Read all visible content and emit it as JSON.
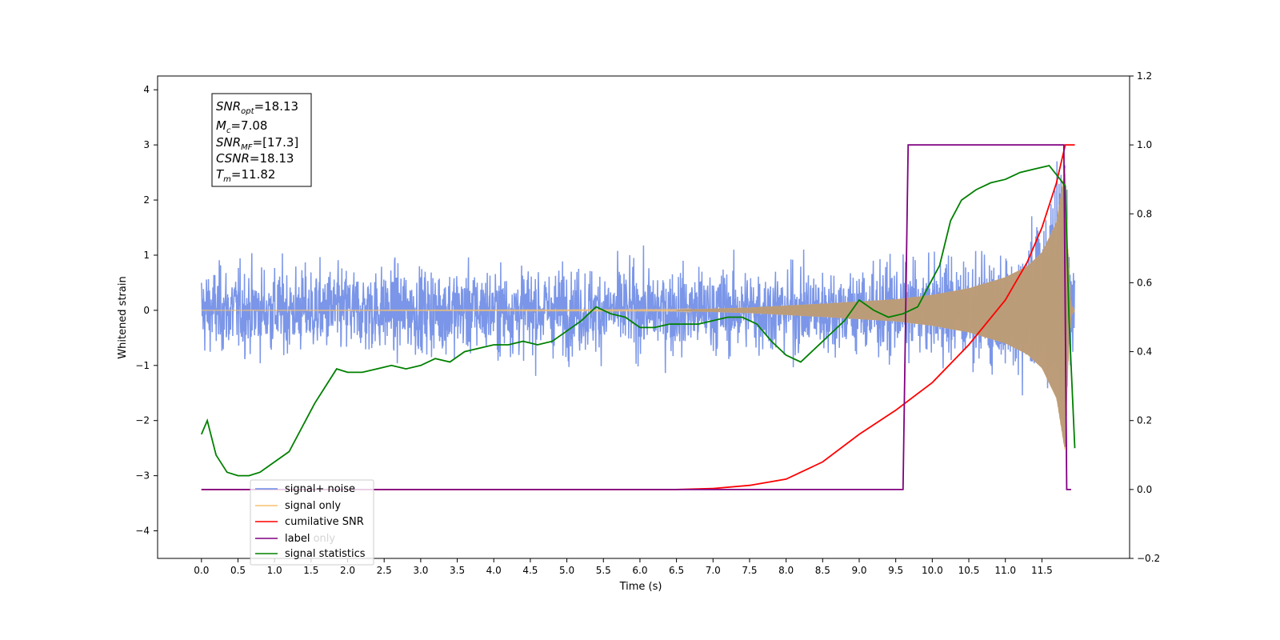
{
  "chart_data": {
    "type": "line",
    "xlabel": "Time (s)",
    "ylabel": "Whitened strain",
    "xlim": [
      -0.6,
      12.7
    ],
    "ylim": [
      -4.5,
      4.25
    ],
    "y2lim": [
      -0.2,
      1.2
    ],
    "grid": false,
    "legend_position": "lower-left",
    "x_ticks": [
      "0.0",
      "0.5",
      "1.0",
      "1.5",
      "2.0",
      "2.5",
      "3.0",
      "3.5",
      "4.0",
      "4.5",
      "5.0",
      "5.5",
      "6.0",
      "6.5",
      "7.0",
      "7.5",
      "8.0",
      "8.5",
      "9.0",
      "9.5",
      "10.0",
      "10.5",
      "11.0",
      "11.5"
    ],
    "y_ticks": [
      "4",
      "3",
      "2",
      "1",
      "0",
      "−1",
      "−2",
      "−3",
      "−4"
    ],
    "y2_ticks": [
      "1.2",
      "1.0",
      "0.8",
      "0.6",
      "0.4",
      "0.2",
      "0.0",
      "−0.2"
    ],
    "annotation": {
      "lines": [
        {
          "sym": "SNR",
          "sub": "opt",
          "val": "=18.13"
        },
        {
          "sym": "M",
          "sub": "c",
          "val": "=7.08"
        },
        {
          "sym": "SNR",
          "sub": "MF",
          "val": "=[17.3]"
        },
        {
          "sym": "CSNR",
          "sub": "",
          "val": "=18.13"
        },
        {
          "sym": "T",
          "sub": "m",
          "val": "=11.82"
        }
      ]
    },
    "series": [
      {
        "name": "signal+ noise",
        "color": "#6d8be6",
        "noise_sigma": 0.75,
        "x_range": [
          0.0,
          11.95
        ]
      },
      {
        "name": "signal only",
        "color": "#f5c070",
        "envelope": [
          [
            0.0,
            0.0
          ],
          [
            6.5,
            0.01
          ],
          [
            7.5,
            0.05
          ],
          [
            8.5,
            0.12
          ],
          [
            9.5,
            0.2
          ],
          [
            10.0,
            0.28
          ],
          [
            10.5,
            0.4
          ],
          [
            11.0,
            0.6
          ],
          [
            11.3,
            0.8
          ],
          [
            11.5,
            1.05
          ],
          [
            11.7,
            1.6
          ],
          [
            11.82,
            2.6
          ],
          [
            11.86,
            1.0
          ],
          [
            11.9,
            0.1
          ],
          [
            11.95,
            0.0
          ]
        ]
      },
      {
        "name": "cumilative SNR",
        "color": "#ff0000",
        "axis": "right",
        "x": [
          0.0,
          6.5,
          7.0,
          7.5,
          8.0,
          8.5,
          9.0,
          9.5,
          10.0,
          10.5,
          11.0,
          11.3,
          11.5,
          11.7,
          11.82,
          11.95
        ],
        "y": [
          0.0,
          0.0,
          0.003,
          0.012,
          0.03,
          0.08,
          0.16,
          0.23,
          0.31,
          0.42,
          0.55,
          0.66,
          0.76,
          0.89,
          1.0,
          1.0
        ]
      },
      {
        "name": "label",
        "color": "#800080",
        "axis": "right",
        "x": [
          0.0,
          9.6,
          9.67,
          11.8,
          11.84,
          11.9
        ],
        "y": [
          0.0,
          0.0,
          1.0,
          1.0,
          0.0,
          0.0
        ]
      },
      {
        "name": "label only",
        "color": "#800080",
        "hidden": true
      },
      {
        "name": "signal statistics",
        "color": "#008000",
        "axis": "right",
        "x": [
          0.0,
          0.08,
          0.2,
          0.35,
          0.5,
          0.65,
          0.8,
          1.0,
          1.2,
          1.4,
          1.55,
          1.7,
          1.85,
          2.0,
          2.2,
          2.4,
          2.6,
          2.8,
          3.0,
          3.2,
          3.4,
          3.6,
          3.8,
          4.0,
          4.2,
          4.4,
          4.6,
          4.8,
          5.0,
          5.2,
          5.4,
          5.6,
          5.8,
          6.0,
          6.2,
          6.4,
          6.6,
          6.8,
          7.0,
          7.2,
          7.4,
          7.6,
          7.8,
          8.0,
          8.2,
          8.4,
          8.6,
          8.8,
          9.0,
          9.2,
          9.4,
          9.6,
          9.8,
          10.0,
          10.1,
          10.25,
          10.4,
          10.6,
          10.8,
          11.0,
          11.2,
          11.4,
          11.6,
          11.75,
          11.82,
          11.87,
          11.95
        ],
        "y": [
          0.16,
          0.2,
          0.1,
          0.05,
          0.04,
          0.04,
          0.05,
          0.08,
          0.11,
          0.19,
          0.25,
          0.3,
          0.35,
          0.34,
          0.34,
          0.35,
          0.36,
          0.35,
          0.36,
          0.38,
          0.37,
          0.4,
          0.41,
          0.42,
          0.42,
          0.43,
          0.42,
          0.43,
          0.46,
          0.49,
          0.53,
          0.51,
          0.5,
          0.47,
          0.47,
          0.48,
          0.48,
          0.48,
          0.49,
          0.5,
          0.5,
          0.48,
          0.43,
          0.39,
          0.37,
          0.41,
          0.45,
          0.49,
          0.55,
          0.52,
          0.5,
          0.51,
          0.53,
          0.61,
          0.65,
          0.78,
          0.84,
          0.87,
          0.89,
          0.9,
          0.92,
          0.93,
          0.94,
          0.9,
          0.88,
          0.5,
          0.12
        ]
      }
    ]
  }
}
